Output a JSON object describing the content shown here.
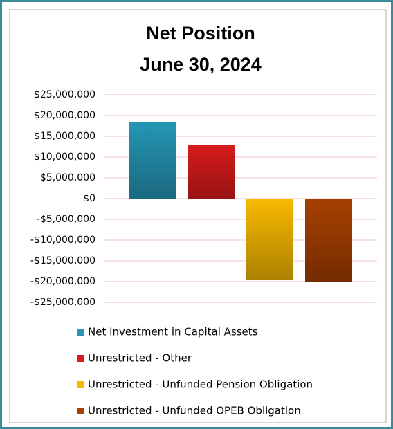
{
  "chart_data": {
    "type": "bar",
    "title": [
      "Net Position",
      "June 30, 2024"
    ],
    "categories": [
      null
    ],
    "series": [
      {
        "name": "Net Investment in Capital Assets",
        "color": "#2596b5",
        "values": [
          18500000
        ]
      },
      {
        "name": "Unrestricted - Other",
        "color": "#d81b1b",
        "values": [
          13000000
        ]
      },
      {
        "name": "Unrestricted - Unfunded Pension Obligation",
        "color": "#f7b900",
        "values": [
          -19500000
        ]
      },
      {
        "name": "Unrestricted - Unfunded OPEB Obligation",
        "color": "#a63f00",
        "values": [
          -20000000
        ]
      }
    ],
    "ylim": [
      -25000000,
      25000000
    ],
    "yticks": [
      {
        "value": 25000000,
        "label": "$25,000,000"
      },
      {
        "value": 20000000,
        "label": "$20,000,000"
      },
      {
        "value": 15000000,
        "label": "$15,000,000"
      },
      {
        "value": 10000000,
        "label": "$10,000,000"
      },
      {
        "value": 5000000,
        "label": "$5,000,000"
      },
      {
        "value": 0,
        "label": "$0"
      },
      {
        "value": -5000000,
        "label": "-$5,000,000"
      },
      {
        "value": -10000000,
        "label": "-$10,000,000"
      },
      {
        "value": -15000000,
        "label": "-$15,000,000"
      },
      {
        "value": -20000000,
        "label": "-$20,000,000"
      },
      {
        "value": -25000000,
        "label": "-$25,000,000"
      }
    ],
    "grid": true,
    "legend": "bottom"
  }
}
